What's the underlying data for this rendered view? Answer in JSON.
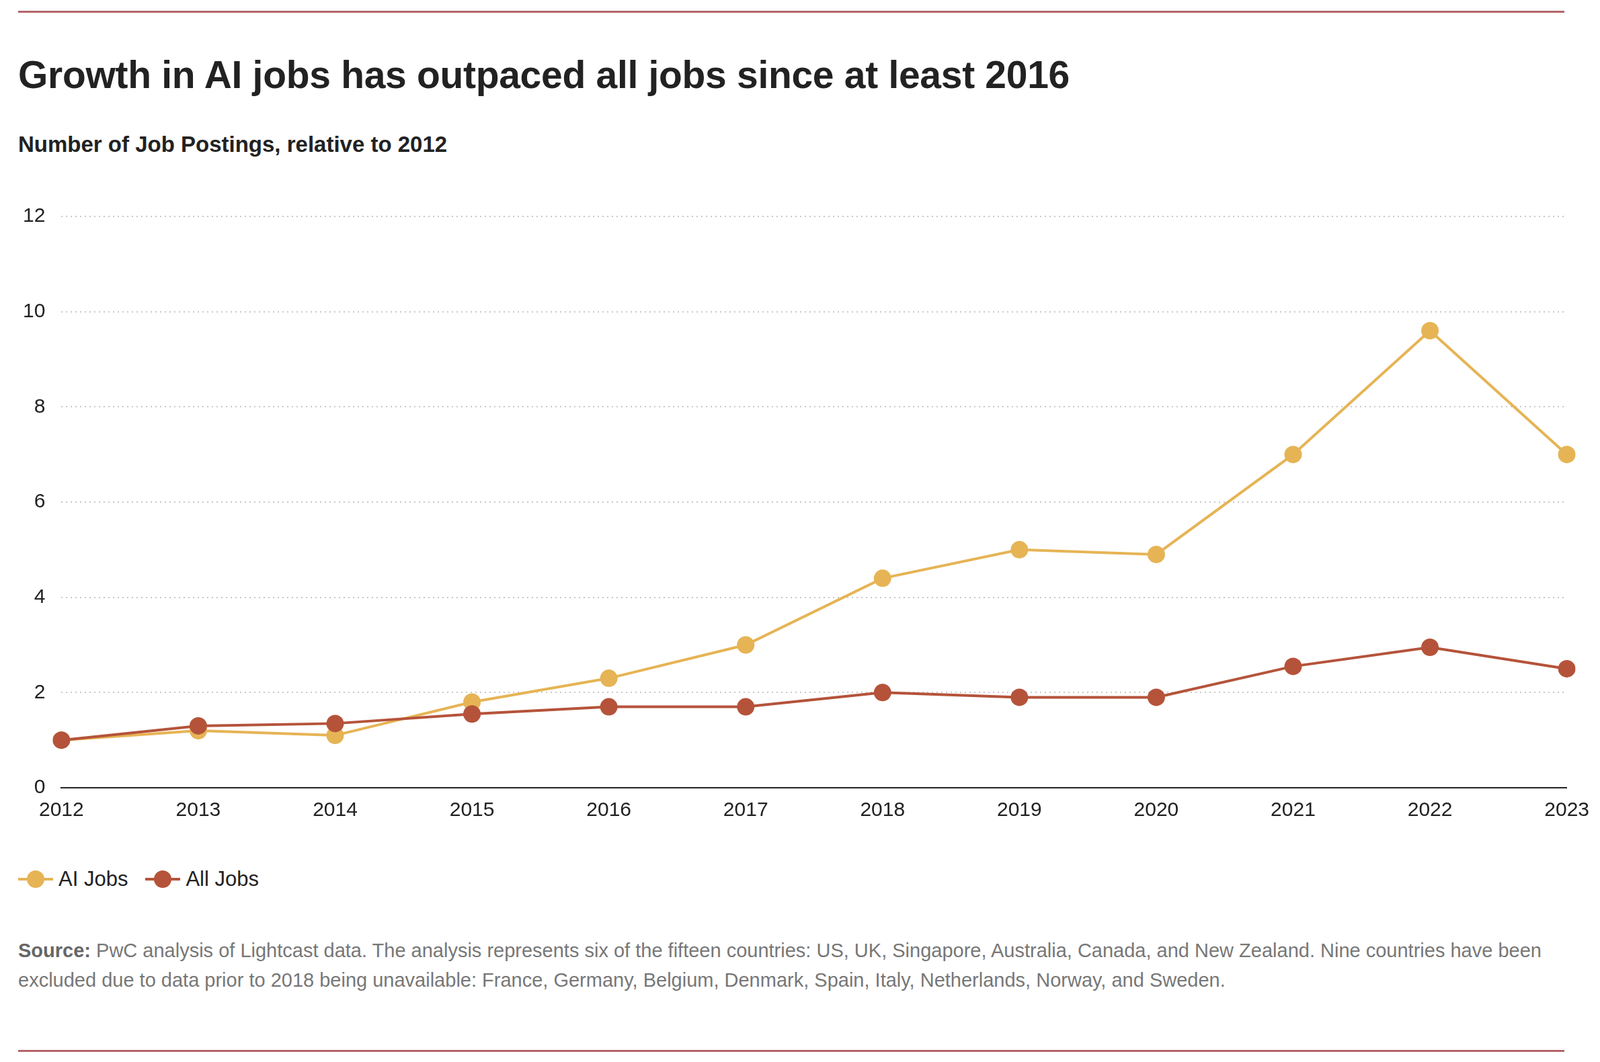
{
  "chart_data": {
    "type": "line",
    "title": "Growth in AI jobs has outpaced all jobs since at least 2016",
    "subtitle": "Number of Job Postings, relative to 2012",
    "categories": [
      "2012",
      "2013",
      "2014",
      "2015",
      "2016",
      "2017",
      "2018",
      "2019",
      "2020",
      "2021",
      "2022",
      "2023"
    ],
    "series": [
      {
        "name": "AI Jobs",
        "color": "#e6b455",
        "marker": "circle",
        "values": [
          1.0,
          1.2,
          1.1,
          1.8,
          2.3,
          3.0,
          4.4,
          5.0,
          4.9,
          7.0,
          9.6,
          7.0
        ]
      },
      {
        "name": "All Jobs",
        "color": "#b5533a",
        "marker": "circle",
        "values": [
          1.0,
          1.3,
          1.35,
          1.55,
          1.7,
          1.7,
          2.0,
          1.9,
          1.9,
          2.55,
          2.95,
          2.5
        ]
      }
    ],
    "ylim": [
      0,
      12
    ],
    "yticks": [
      0,
      2,
      4,
      6,
      8,
      10,
      12
    ],
    "grid": true,
    "legend": "bottom-left",
    "note_label": "Source:",
    "note": "PwC analysis of Lightcast data. The analysis represents six of the fifteen countries: US, UK, Singapore, Australia, Canada, and New Zealand. Nine countries have been excluded due to data prior to 2018 being unavailable: France, Germany, Belgium, Denmark, Spain, Italy, Netherlands, Norway, and Sweden."
  }
}
